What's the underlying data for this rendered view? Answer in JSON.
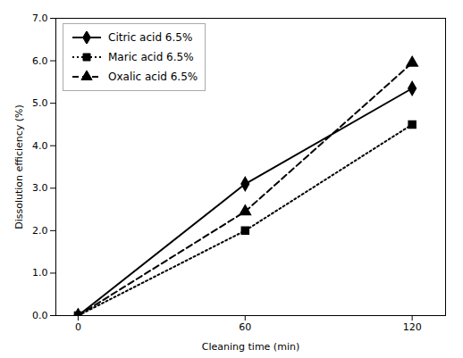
{
  "chart_data": {
    "type": "line",
    "xlabel": "Cleaning time (min)",
    "ylabel": "Dissolution efficiency (%)",
    "x": [
      0,
      60,
      120
    ],
    "series": [
      {
        "name": "Citric acid 6.5%",
        "color": "#000000",
        "line_style": "solid",
        "marker": "diamond",
        "values": [
          0.0,
          3.1,
          5.35
        ]
      },
      {
        "name": "Maric acid 6.5%",
        "color": "#000000",
        "line_style": "dotted",
        "marker": "square",
        "values": [
          0.0,
          2.0,
          4.5
        ]
      },
      {
        "name": "Oxalic acid 6.5%",
        "color": "#000000",
        "line_style": "dashed",
        "marker": "triangle",
        "values": [
          0.0,
          2.45,
          5.95
        ]
      }
    ],
    "xlim": [
      -8,
      132
    ],
    "ylim": [
      0,
      7
    ],
    "xticks": [
      0,
      60,
      120
    ],
    "yticks": [
      0,
      1,
      2,
      3,
      4,
      5,
      6,
      7
    ],
    "grid": false,
    "legend": "upper left"
  }
}
